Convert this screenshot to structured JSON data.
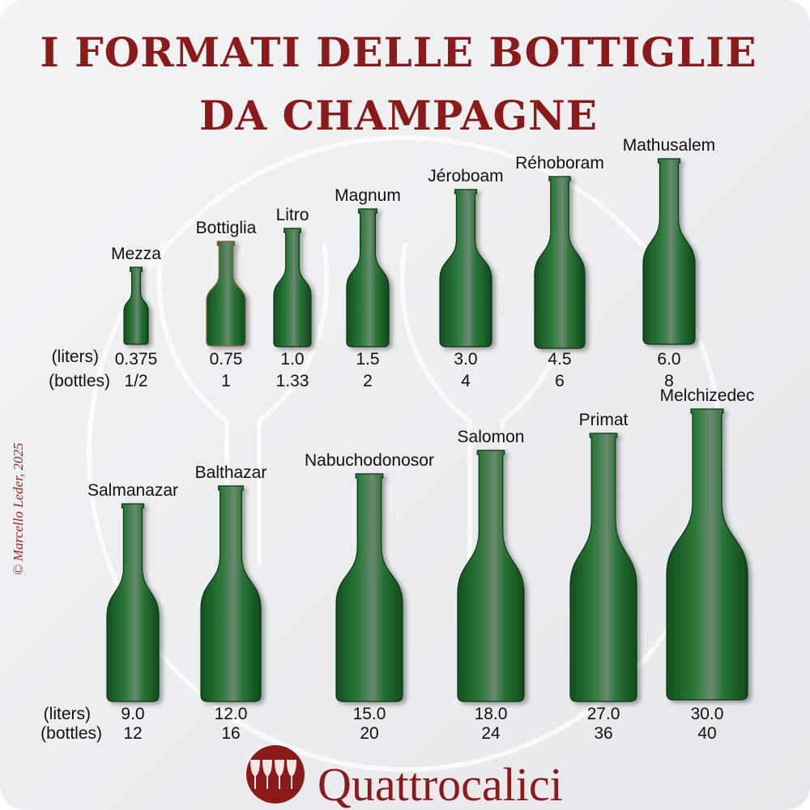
{
  "title": {
    "line1": "I FORMATI DELLE BOTTIGLIE",
    "line2": "DA CHAMPAGNE"
  },
  "row_labels": {
    "liters": "(liters)",
    "bottles": "(bottles)"
  },
  "credit": "© Marcello Leder, 2025",
  "brand": {
    "name": "Quattrocalici",
    "icon": "four-wine-glasses-icon"
  },
  "colors": {
    "title": "#8b1a1a",
    "bottle": "#1f6b2e",
    "background": "#eeeff1"
  },
  "bottles": [
    {
      "name": "Mezza",
      "liters": "0.375",
      "bottles": "1/2"
    },
    {
      "name": "Bottiglia",
      "liters": "0.75",
      "bottles": "1"
    },
    {
      "name": "Litro",
      "liters": "1.0",
      "bottles": "1.33"
    },
    {
      "name": "Magnum",
      "liters": "1.5",
      "bottles": "2"
    },
    {
      "name": "Jéroboam",
      "liters": "3.0",
      "bottles": "4"
    },
    {
      "name": "Réhoboram",
      "liters": "4.5",
      "bottles": "6"
    },
    {
      "name": "Mathusalem",
      "liters": "6.0",
      "bottles": "8"
    },
    {
      "name": "Salmanazar",
      "liters": "9.0",
      "bottles": "12"
    },
    {
      "name": "Balthazar",
      "liters": "12.0",
      "bottles": "16"
    },
    {
      "name": "Nabuchodonosor",
      "liters": "15.0",
      "bottles": "20"
    },
    {
      "name": "Salomon",
      "liters": "18.0",
      "bottles": "24"
    },
    {
      "name": "Primat",
      "liters": "27.0",
      "bottles": "36"
    },
    {
      "name": "Melchizedec",
      "liters": "30.0",
      "bottles": "40"
    }
  ]
}
